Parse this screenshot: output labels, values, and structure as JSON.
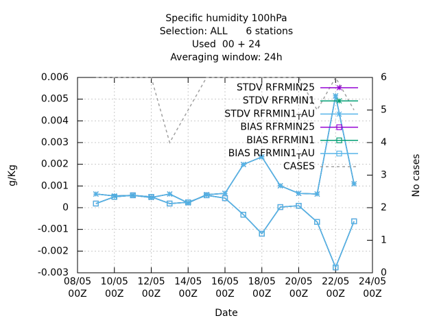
{
  "chart_data": {
    "type": "line",
    "title_lines": [
      "Specific humidity 100hPa",
      "Selection: ALL      6 stations",
      "Used  00 + 24",
      "Averaging window: 24h"
    ],
    "x_label": "Date",
    "y_label": "g/Kg",
    "y2_label": "No cases",
    "x": [
      9,
      10,
      11,
      12,
      13,
      14,
      15,
      16,
      17,
      18,
      19,
      20,
      21,
      22,
      23
    ],
    "xlim": [
      8,
      24
    ],
    "xticks": [
      {
        "value": 8,
        "label": "08/05\n00Z"
      },
      {
        "value": 10,
        "label": "10/05\n00Z"
      },
      {
        "value": 12,
        "label": "12/05\n00Z"
      },
      {
        "value": 14,
        "label": "14/05\n00Z"
      },
      {
        "value": 16,
        "label": "16/05\n00Z"
      },
      {
        "value": 18,
        "label": "18/05\n00Z"
      },
      {
        "value": 20,
        "label": "20/05\n00Z"
      },
      {
        "value": 22,
        "label": "22/05\n00Z"
      },
      {
        "value": 24,
        "label": "24/05\n00Z"
      }
    ],
    "ylim": [
      -0.003,
      0.006
    ],
    "yticks": [
      -0.003,
      -0.002,
      -0.001,
      0,
      0.001,
      0.002,
      0.003,
      0.004,
      0.005,
      0.006
    ],
    "y2lim": [
      0,
      6
    ],
    "y2ticks": [
      0,
      1,
      2,
      3,
      4,
      5,
      6
    ],
    "grid": true,
    "legend": "top-right",
    "series": [
      {
        "name": "STDV RFRMIN25",
        "color": "#9400d3",
        "marker": "star",
        "values": [
          0.00063,
          0.00054,
          0.00057,
          0.00047,
          0.00063,
          0.00022,
          0.0006,
          0.00066,
          0.00199,
          0.00234,
          0.00101,
          0.00066,
          0.00063,
          0.00515,
          0.0011
        ]
      },
      {
        "name": "STDV RFRMIN1",
        "color": "#009e73",
        "marker": "star",
        "values": [
          0.00063,
          0.00054,
          0.00057,
          0.00047,
          0.00063,
          0.00022,
          0.0006,
          0.00066,
          0.00199,
          0.00234,
          0.00101,
          0.00066,
          0.00063,
          0.00515,
          0.0011
        ]
      },
      {
        "name": "STDV RFRMIN1_TAU",
        "color": "#56b4e9",
        "marker": "star",
        "values": [
          0.00063,
          0.00054,
          0.00057,
          0.00047,
          0.00063,
          0.00022,
          0.0006,
          0.00066,
          0.00199,
          0.00234,
          0.00101,
          0.00066,
          0.00063,
          0.00515,
          0.0011
        ]
      },
      {
        "name": "BIAS RFRMIN25",
        "color": "#9400d3",
        "marker": "square",
        "values": [
          0.00019,
          0.0005,
          0.00057,
          0.0005,
          0.00019,
          0.00025,
          0.00057,
          0.00044,
          -0.00032,
          -0.0012,
          3e-05,
          9e-05,
          -0.00066,
          -0.00275,
          -0.00063
        ]
      },
      {
        "name": "BIAS RFRMIN1",
        "color": "#009e73",
        "marker": "square",
        "values": [
          0.00019,
          0.0005,
          0.00057,
          0.0005,
          0.00019,
          0.00025,
          0.00057,
          0.00044,
          -0.00032,
          -0.0012,
          3e-05,
          9e-05,
          -0.00066,
          -0.00275,
          -0.00063
        ]
      },
      {
        "name": "BIAS RFRMIN1_TAU",
        "color": "#56b4e9",
        "marker": "square",
        "values": [
          0.00019,
          0.0005,
          0.00057,
          0.0005,
          0.00019,
          0.00025,
          0.00057,
          0.00044,
          -0.00032,
          -0.0012,
          3e-05,
          9e-05,
          -0.00066,
          -0.00275,
          -0.00063
        ]
      },
      {
        "name": "CASES",
        "color": "#a0a0a0",
        "marker": "none",
        "dashed": true,
        "axis": "y2",
        "values": [
          6,
          6,
          6,
          6,
          4,
          5,
          6,
          6,
          6,
          6,
          6,
          6,
          5,
          6,
          5
        ]
      }
    ]
  }
}
